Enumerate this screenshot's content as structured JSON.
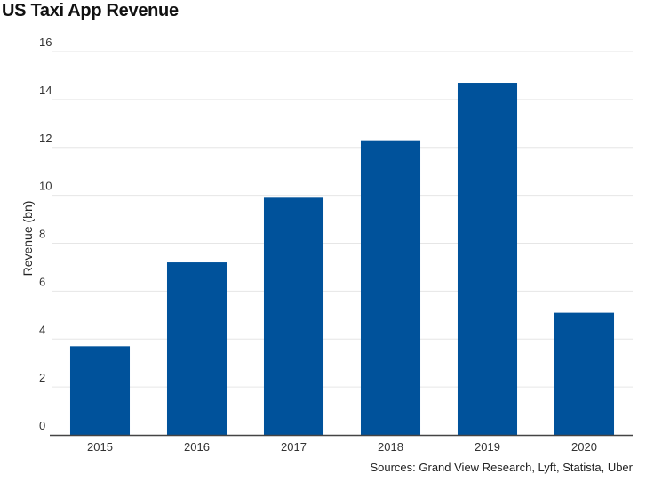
{
  "chart_data": {
    "type": "bar",
    "title": "US Taxi App Revenue",
    "categories": [
      "2015",
      "2016",
      "2017",
      "2018",
      "2019",
      "2020"
    ],
    "values": [
      3.7,
      7.2,
      9.9,
      12.3,
      14.7,
      5.1
    ],
    "xlabel": "",
    "ylabel": "Revenue (bn)",
    "ylim": [
      0,
      16
    ],
    "yticks": [
      0,
      2,
      4,
      6,
      8,
      10,
      12,
      14,
      16
    ],
    "grid": true,
    "bar_color": "#00529b",
    "source": "Sources: Grand View Research, Lyft, Statista, Uber"
  }
}
